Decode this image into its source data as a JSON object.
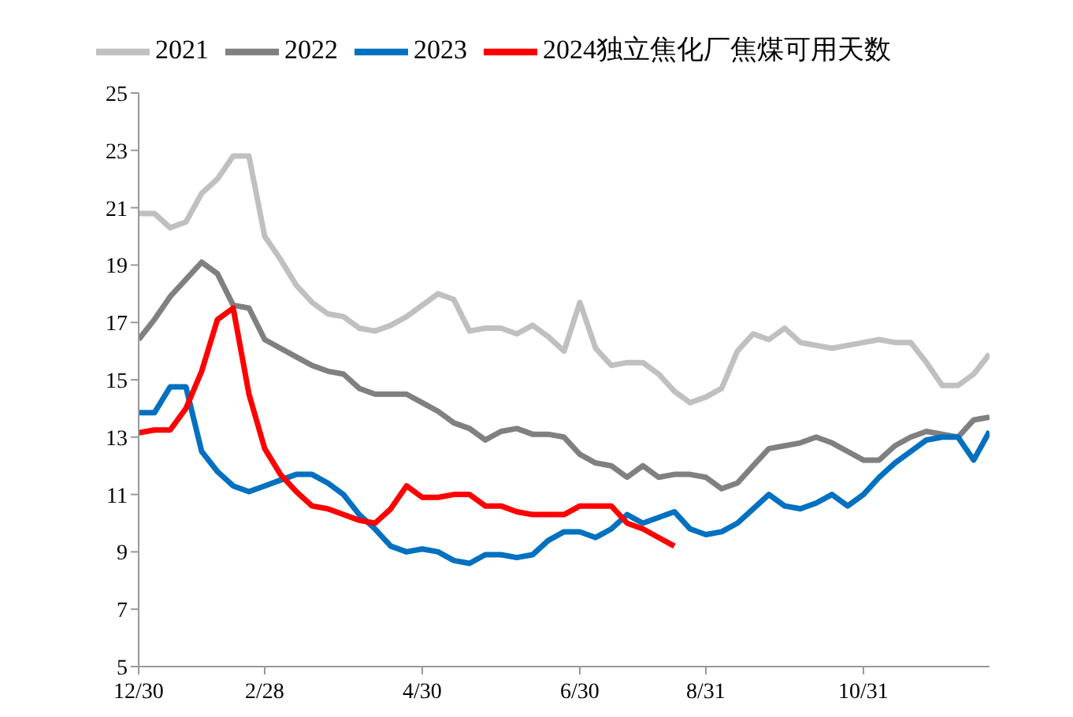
{
  "chart_data": {
    "type": "line",
    "categories": [
      "12/30",
      null,
      null,
      null,
      null,
      null,
      null,
      null,
      "2/28",
      null,
      null,
      null,
      null,
      null,
      null,
      null,
      null,
      null,
      "4/30",
      null,
      null,
      null,
      null,
      null,
      null,
      null,
      null,
      null,
      "6/30",
      null,
      null,
      null,
      null,
      null,
      null,
      null,
      "8/31",
      null,
      null,
      null,
      null,
      null,
      null,
      null,
      null,
      null,
      "10/31",
      null,
      null,
      null,
      null,
      null,
      null,
      null,
      null
    ],
    "series": [
      {
        "name": "2021",
        "color": "#c0c0c0",
        "values": [
          20.8,
          20.8,
          20.3,
          20.5,
          21.5,
          22.0,
          22.8,
          22.8,
          20.0,
          19.2,
          18.3,
          17.7,
          17.3,
          17.2,
          16.8,
          16.7,
          16.9,
          17.2,
          17.6,
          18.0,
          17.8,
          16.7,
          16.8,
          16.8,
          16.6,
          16.9,
          16.5,
          16.0,
          17.7,
          16.1,
          15.5,
          15.6,
          15.6,
          15.2,
          14.6,
          14.2,
          14.4,
          14.7,
          16.0,
          16.6,
          16.4,
          16.8,
          16.3,
          16.2,
          16.1,
          16.2,
          16.3,
          16.4,
          16.3,
          16.3,
          15.6,
          14.8,
          14.8,
          15.2,
          15.9
        ]
      },
      {
        "name": "2022",
        "color": "#808080",
        "values": [
          16.4,
          17.1,
          17.9,
          18.5,
          19.1,
          18.7,
          17.6,
          17.5,
          16.4,
          16.1,
          15.8,
          15.5,
          15.3,
          15.2,
          14.7,
          14.5,
          14.5,
          14.5,
          14.2,
          13.9,
          13.5,
          13.3,
          12.9,
          13.2,
          13.3,
          13.1,
          13.1,
          13.0,
          12.4,
          12.1,
          12.0,
          11.6,
          12.0,
          11.6,
          11.7,
          11.7,
          11.6,
          11.2,
          11.4,
          12.0,
          12.6,
          12.7,
          12.8,
          13.0,
          12.8,
          12.5,
          12.2,
          12.2,
          12.7,
          13.0,
          13.2,
          13.1,
          13.0,
          13.6,
          13.7
        ]
      },
      {
        "name": "2023",
        "color": "#0070c0",
        "values": [
          13.85,
          13.85,
          14.75,
          14.75,
          12.5,
          11.8,
          11.3,
          11.1,
          11.3,
          11.5,
          11.7,
          11.7,
          11.4,
          11.0,
          10.3,
          9.8,
          9.2,
          9.0,
          9.1,
          9.0,
          8.7,
          8.6,
          8.9,
          8.9,
          8.8,
          8.9,
          9.4,
          9.7,
          9.7,
          9.5,
          9.8,
          10.3,
          10.0,
          10.2,
          10.4,
          9.8,
          9.6,
          9.7,
          10.0,
          10.5,
          11.0,
          10.6,
          10.5,
          10.7,
          11.0,
          10.6,
          11.0,
          11.6,
          12.1,
          12.5,
          12.9,
          13.0,
          13.0,
          12.2,
          13.2
        ]
      },
      {
        "name": "2024独立焦化厂焦煤可用天数",
        "color": "#ff0000",
        "values": [
          13.15,
          13.25,
          13.25,
          14.0,
          15.3,
          17.1,
          17.5,
          14.5,
          12.6,
          11.7,
          11.1,
          10.6,
          10.5,
          10.3,
          10.1,
          10.0,
          10.5,
          11.3,
          10.9,
          10.9,
          11.0,
          11.0,
          10.6,
          10.6,
          10.4,
          10.3,
          10.3,
          10.3,
          10.6,
          10.6,
          10.6,
          10.0,
          9.8,
          9.5,
          9.2,
          null,
          null,
          null,
          null,
          null,
          null,
          null,
          null,
          null,
          null,
          null,
          null,
          null,
          null,
          null,
          null,
          null,
          null,
          null,
          null
        ]
      }
    ],
    "ylim": [
      5,
      25
    ],
    "yticks": [
      5,
      7,
      9,
      11,
      13,
      15,
      17,
      19,
      21,
      23,
      25
    ],
    "legend": "top",
    "marker": "none",
    "line_style": "solid"
  }
}
